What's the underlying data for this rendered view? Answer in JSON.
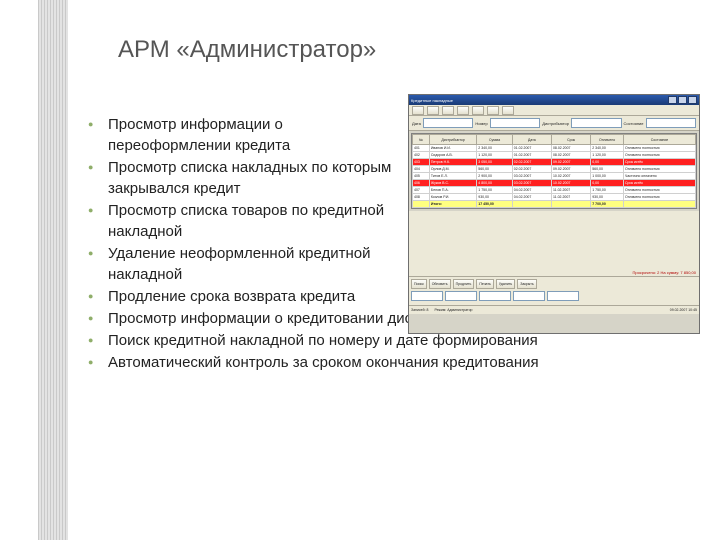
{
  "colors": {
    "title": "#555555",
    "text": "#222222",
    "bullet": "#8fae6a",
    "stripe_light": "#e3e3e3",
    "stripe_dark": "#c9c9c9",
    "win_bg": "#d6d4c8",
    "win_border": "#6f6f6f",
    "titlebar_top": "#2b5aad",
    "titlebar_bottom": "#1a3a75",
    "tool_bg": "#ece9d8",
    "tool_border": "#aca899",
    "field_border": "#7f9db9",
    "row_red": "#ff2020",
    "row_yellow": "#ffff80",
    "status_red": "#b00000"
  },
  "title": "АРМ «Администратор»",
  "bullets": [
    "Просмотр информации о переоформлении кредита",
    "Просмотр списка накладных по которым закрывался кредит",
    "Просмотр списка товаров по кредитной накладной",
    "Удаление неоформленной кредитной накладной",
    "Продление срока возврата кредита",
    "Просмотр информации о кредитовании дистрибьютора",
    "Поиск кредитной накладной по номеру и дате формирования",
    "Автоматический контроль за сроком окончания кредитования"
  ],
  "screenshot": {
    "window_title": "Кредитные накладные",
    "filter_labels": [
      "Дата",
      "с",
      "по",
      "Номер",
      "Дистрибьютор",
      "Состояние",
      "Вид оплаты"
    ],
    "grid_columns": [
      "№",
      "Дистрибьютор",
      "Сумма",
      "Дата",
      "Срок",
      "Оплачено",
      "Состояние"
    ],
    "grid_rows": [
      {
        "hot": false,
        "cells": [
          "401",
          "Иванов И.И.",
          "2 340,00",
          "01.02.2007",
          "08.02.2007",
          "2 340,00",
          "Оплачено полностью"
        ]
      },
      {
        "hot": false,
        "cells": [
          "402",
          "Сидоров А.В.",
          "1 120,00",
          "01.02.2007",
          "08.02.2007",
          "1 120,00",
          "Оплачено полностью"
        ]
      },
      {
        "hot": true,
        "cells": [
          "403",
          "Петров Н.К.",
          "3 050,00",
          "02.02.2007",
          "09.02.2007",
          "0,00",
          "Срок истёк"
        ]
      },
      {
        "hot": false,
        "cells": [
          "404",
          "Орлов Д.М.",
          "560,00",
          "02.02.2007",
          "09.02.2007",
          "560,00",
          "Оплачено полностью"
        ]
      },
      {
        "hot": false,
        "cells": [
          "405",
          "Титов Е.Л.",
          "2 900,00",
          "03.02.2007",
          "10.02.2007",
          "1 000,00",
          "Частично оплачено"
        ]
      },
      {
        "hot": true,
        "cells": [
          "406",
          "Жуков В.С.",
          "4 800,00",
          "03.02.2007",
          "10.02.2007",
          "0,00",
          "Срок истёк"
        ]
      },
      {
        "hot": false,
        "cells": [
          "407",
          "Белов П.А.",
          "1 750,00",
          "04.02.2007",
          "11.02.2007",
          "1 750,00",
          "Оплачено полностью"
        ]
      },
      {
        "hot": false,
        "cells": [
          "408",
          "Козлов Р.И.",
          "930,00",
          "04.02.2007",
          "11.02.2007",
          "930,00",
          "Оплачено полностью"
        ]
      }
    ],
    "grid_summary": [
      "",
      "Итого:",
      "17 450,00",
      "",
      "",
      "7 700,00",
      ""
    ],
    "red_note": "Просрочено: 2   На сумму: 7 850,00",
    "panel_buttons": [
      "Поиск",
      "Обновить",
      "Продлить",
      "Печать",
      "Удалить",
      "Закрыть"
    ],
    "status_left": "Записей: 8",
    "status_mid": "Режим: Администратор",
    "status_right": "09.02.2007  10:45"
  }
}
